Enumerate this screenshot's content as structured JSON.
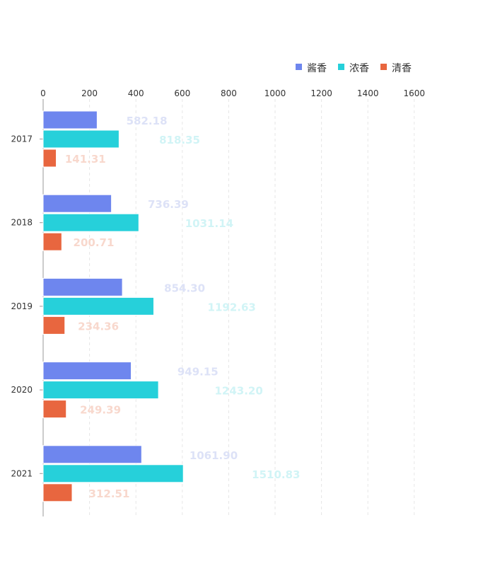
{
  "chart_data": {
    "type": "bar",
    "orientation": "horizontal",
    "categories": [
      "2017",
      "2018",
      "2019",
      "2020",
      "2021"
    ],
    "series": [
      {
        "name": "酱香",
        "color": "#6e86ee",
        "values": [
          582.18,
          736.39,
          854.3,
          949.15,
          1061.9
        ]
      },
      {
        "name": "浓香",
        "color": "#26d0da",
        "values": [
          818.35,
          1031.14,
          1192.63,
          1243.2,
          1510.83
        ]
      },
      {
        "name": "清香",
        "color": "#e8663f",
        "values": [
          141.31,
          200.71,
          234.36,
          249.39,
          312.51
        ]
      }
    ],
    "xlim": [
      0,
      1600
    ],
    "xticks": [
      "0",
      "200",
      "400",
      "600",
      "800",
      "1000",
      "1200",
      "1400",
      "1600"
    ],
    "grid": true,
    "legend_position": "top-right",
    "label_colors": [
      "#dde2f7",
      "#d1f4f6",
      "#f8d8cd"
    ]
  }
}
